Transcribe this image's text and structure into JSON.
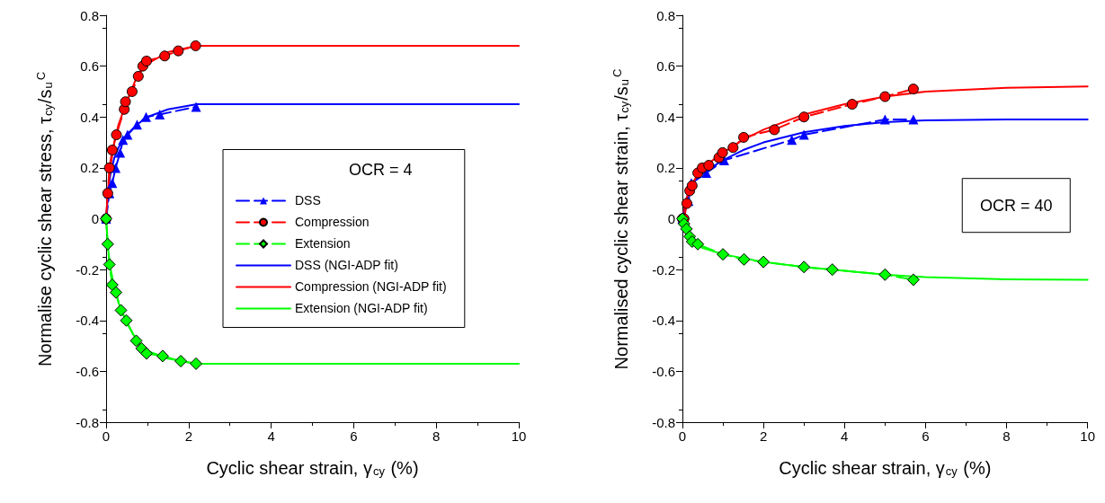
{
  "chart_data": [
    {
      "type": "line",
      "xlabel": "Cyclic shear strain, γ$_{cy}$ (%)",
      "ylabel": "Normalise cyclic shear stress, τ$_{cy}$/s$_{u}$$^{C}$",
      "legend_title": "OCR = 4",
      "legend": "center right",
      "grid": false,
      "xlim": [
        0,
        10
      ],
      "xticks": [
        0,
        2,
        4,
        6,
        8,
        10
      ],
      "ylim": [
        -0.8,
        0.8
      ],
      "yticks": [
        -0.8,
        -0.6,
        -0.4,
        -0.2,
        0,
        0.2,
        0.4,
        0.6,
        0.8
      ],
      "series": [
        {
          "name": "DSS",
          "color": "#0000ff",
          "marker": "triangle",
          "line_style": "dashed",
          "x": [
            0,
            0.08,
            0.15,
            0.23,
            0.34,
            0.41,
            0.52,
            0.75,
            0.97,
            1.3,
            2.18
          ],
          "values": [
            0,
            0.1,
            0.14,
            0.2,
            0.26,
            0.31,
            0.33,
            0.37,
            0.4,
            0.41,
            0.44
          ]
        },
        {
          "name": "Compression",
          "color": "#ff0000",
          "marker": "circle",
          "line_style": "dashed",
          "x": [
            0,
            0.04,
            0.08,
            0.15,
            0.25,
            0.44,
            0.47,
            0.63,
            0.78,
            0.89,
            0.98,
            1.42,
            1.75,
            2.17
          ],
          "values": [
            0,
            0.1,
            0.2,
            0.27,
            0.33,
            0.43,
            0.46,
            0.5,
            0.56,
            0.6,
            0.62,
            0.64,
            0.66,
            0.68
          ]
        },
        {
          "name": "Extension",
          "color": "#00ff00",
          "marker": "diamond",
          "line_style": "dashed",
          "x": [
            0,
            0.04,
            0.08,
            0.15,
            0.24,
            0.36,
            0.49,
            0.73,
            0.86,
            0.98,
            1.37,
            1.81,
            2.18
          ],
          "values": [
            0,
            -0.1,
            -0.18,
            -0.26,
            -0.29,
            -0.36,
            -0.4,
            -0.48,
            -0.51,
            -0.53,
            -0.54,
            -0.56,
            -0.57
          ]
        },
        {
          "name": "DSS (NGI-ADP fit)",
          "color": "#0000ff",
          "marker": "none",
          "line_style": "solid",
          "x": [
            0,
            0.05,
            0.1,
            0.2,
            0.3,
            0.5,
            0.75,
            1,
            1.5,
            2.2,
            10
          ],
          "values": [
            0,
            0.1,
            0.17,
            0.24,
            0.28,
            0.33,
            0.37,
            0.4,
            0.43,
            0.45,
            0.45
          ]
        },
        {
          "name": "Compression (NGI-ADP fit)",
          "color": "#ff0000",
          "marker": "none",
          "line_style": "solid",
          "x": [
            0,
            0.05,
            0.1,
            0.2,
            0.3,
            0.5,
            0.75,
            1,
            1.5,
            2.2,
            10
          ],
          "values": [
            0,
            0.12,
            0.2,
            0.3,
            0.37,
            0.46,
            0.56,
            0.61,
            0.655,
            0.68,
            0.68
          ]
        },
        {
          "name": "Extension (NGI-ADP fit)",
          "color": "#00ff00",
          "marker": "none",
          "line_style": "solid",
          "x": [
            0,
            0.05,
            0.1,
            0.2,
            0.3,
            0.5,
            0.75,
            1,
            1.5,
            2.2,
            10
          ],
          "values": [
            0,
            -0.12,
            -0.19,
            -0.27,
            -0.33,
            -0.41,
            -0.48,
            -0.52,
            -0.55,
            -0.57,
            -0.57
          ]
        }
      ]
    },
    {
      "type": "line",
      "xlabel": "Cyclic shear strain, γ$_{cy}$ (%)",
      "ylabel": "Normalised cyclic shear strain, τ$_{cy}$/s$_{u}$$^{C}$",
      "annotations": [
        "OCR = 40"
      ],
      "grid": false,
      "xlim": [
        0,
        10
      ],
      "xticks": [
        0,
        2,
        4,
        6,
        8,
        10
      ],
      "ylim": [
        -0.8,
        0.8
      ],
      "yticks": [
        -0.8,
        -0.6,
        -0.4,
        -0.2,
        0,
        0.2,
        0.4,
        0.6,
        0.8
      ],
      "series": [
        {
          "color": "#0000ff",
          "marker": "triangle",
          "line_style": "dashed",
          "x": [
            0,
            0.15,
            0.22,
            0.59,
            1.03,
            2.7,
            3.0,
            5.0,
            5.7
          ],
          "values": [
            0,
            0.07,
            0.14,
            0.18,
            0.23,
            0.31,
            0.33,
            0.39,
            0.39
          ]
        },
        {
          "color": "#ff0000",
          "marker": "circle",
          "line_style": "dashed",
          "x": [
            0,
            0.04,
            0.11,
            0.18,
            0.24,
            0.38,
            0.49,
            0.65,
            0.9,
            0.99,
            1.25,
            1.51,
            2.27,
            3.0,
            4.19,
            5.0,
            5.7
          ],
          "values": [
            0,
            0.0,
            0.06,
            0.11,
            0.13,
            0.18,
            0.2,
            0.21,
            0.24,
            0.26,
            0.28,
            0.32,
            0.35,
            0.4,
            0.45,
            0.48,
            0.51
          ]
        },
        {
          "color": "#00ff00",
          "marker": "diamond",
          "line_style": "dashed",
          "x": [
            0,
            0.04,
            0.1,
            0.18,
            0.24,
            0.38,
            1.0,
            1.52,
            2.0,
            3.0,
            3.7,
            5.0,
            5.7
          ],
          "values": [
            0,
            -0.02,
            -0.04,
            -0.07,
            -0.09,
            -0.1,
            -0.14,
            -0.16,
            -0.17,
            -0.19,
            -0.2,
            -0.22,
            -0.24
          ]
        },
        {
          "color": "#0000ff",
          "marker": "none",
          "line_style": "solid",
          "x": [
            0,
            0.1,
            0.25,
            0.5,
            1,
            1.5,
            2,
            3,
            4,
            5,
            6,
            8,
            10
          ],
          "values": [
            0,
            0.08,
            0.14,
            0.18,
            0.23,
            0.27,
            0.3,
            0.34,
            0.365,
            0.38,
            0.387,
            0.39,
            0.39
          ]
        },
        {
          "color": "#ff0000",
          "marker": "none",
          "line_style": "solid",
          "x": [
            0,
            0.1,
            0.25,
            0.5,
            1,
            1.5,
            2,
            3,
            4,
            5,
            6,
            8,
            10
          ],
          "values": [
            0,
            0.08,
            0.14,
            0.2,
            0.26,
            0.31,
            0.35,
            0.41,
            0.45,
            0.48,
            0.5,
            0.515,
            0.52
          ]
        },
        {
          "color": "#00ff00",
          "marker": "none",
          "line_style": "solid",
          "x": [
            0,
            0.1,
            0.25,
            0.5,
            1,
            2,
            3,
            4,
            5,
            6,
            8,
            10
          ],
          "values": [
            0,
            -0.05,
            -0.09,
            -0.115,
            -0.14,
            -0.17,
            -0.19,
            -0.205,
            -0.22,
            -0.23,
            -0.238,
            -0.24
          ]
        }
      ]
    }
  ]
}
